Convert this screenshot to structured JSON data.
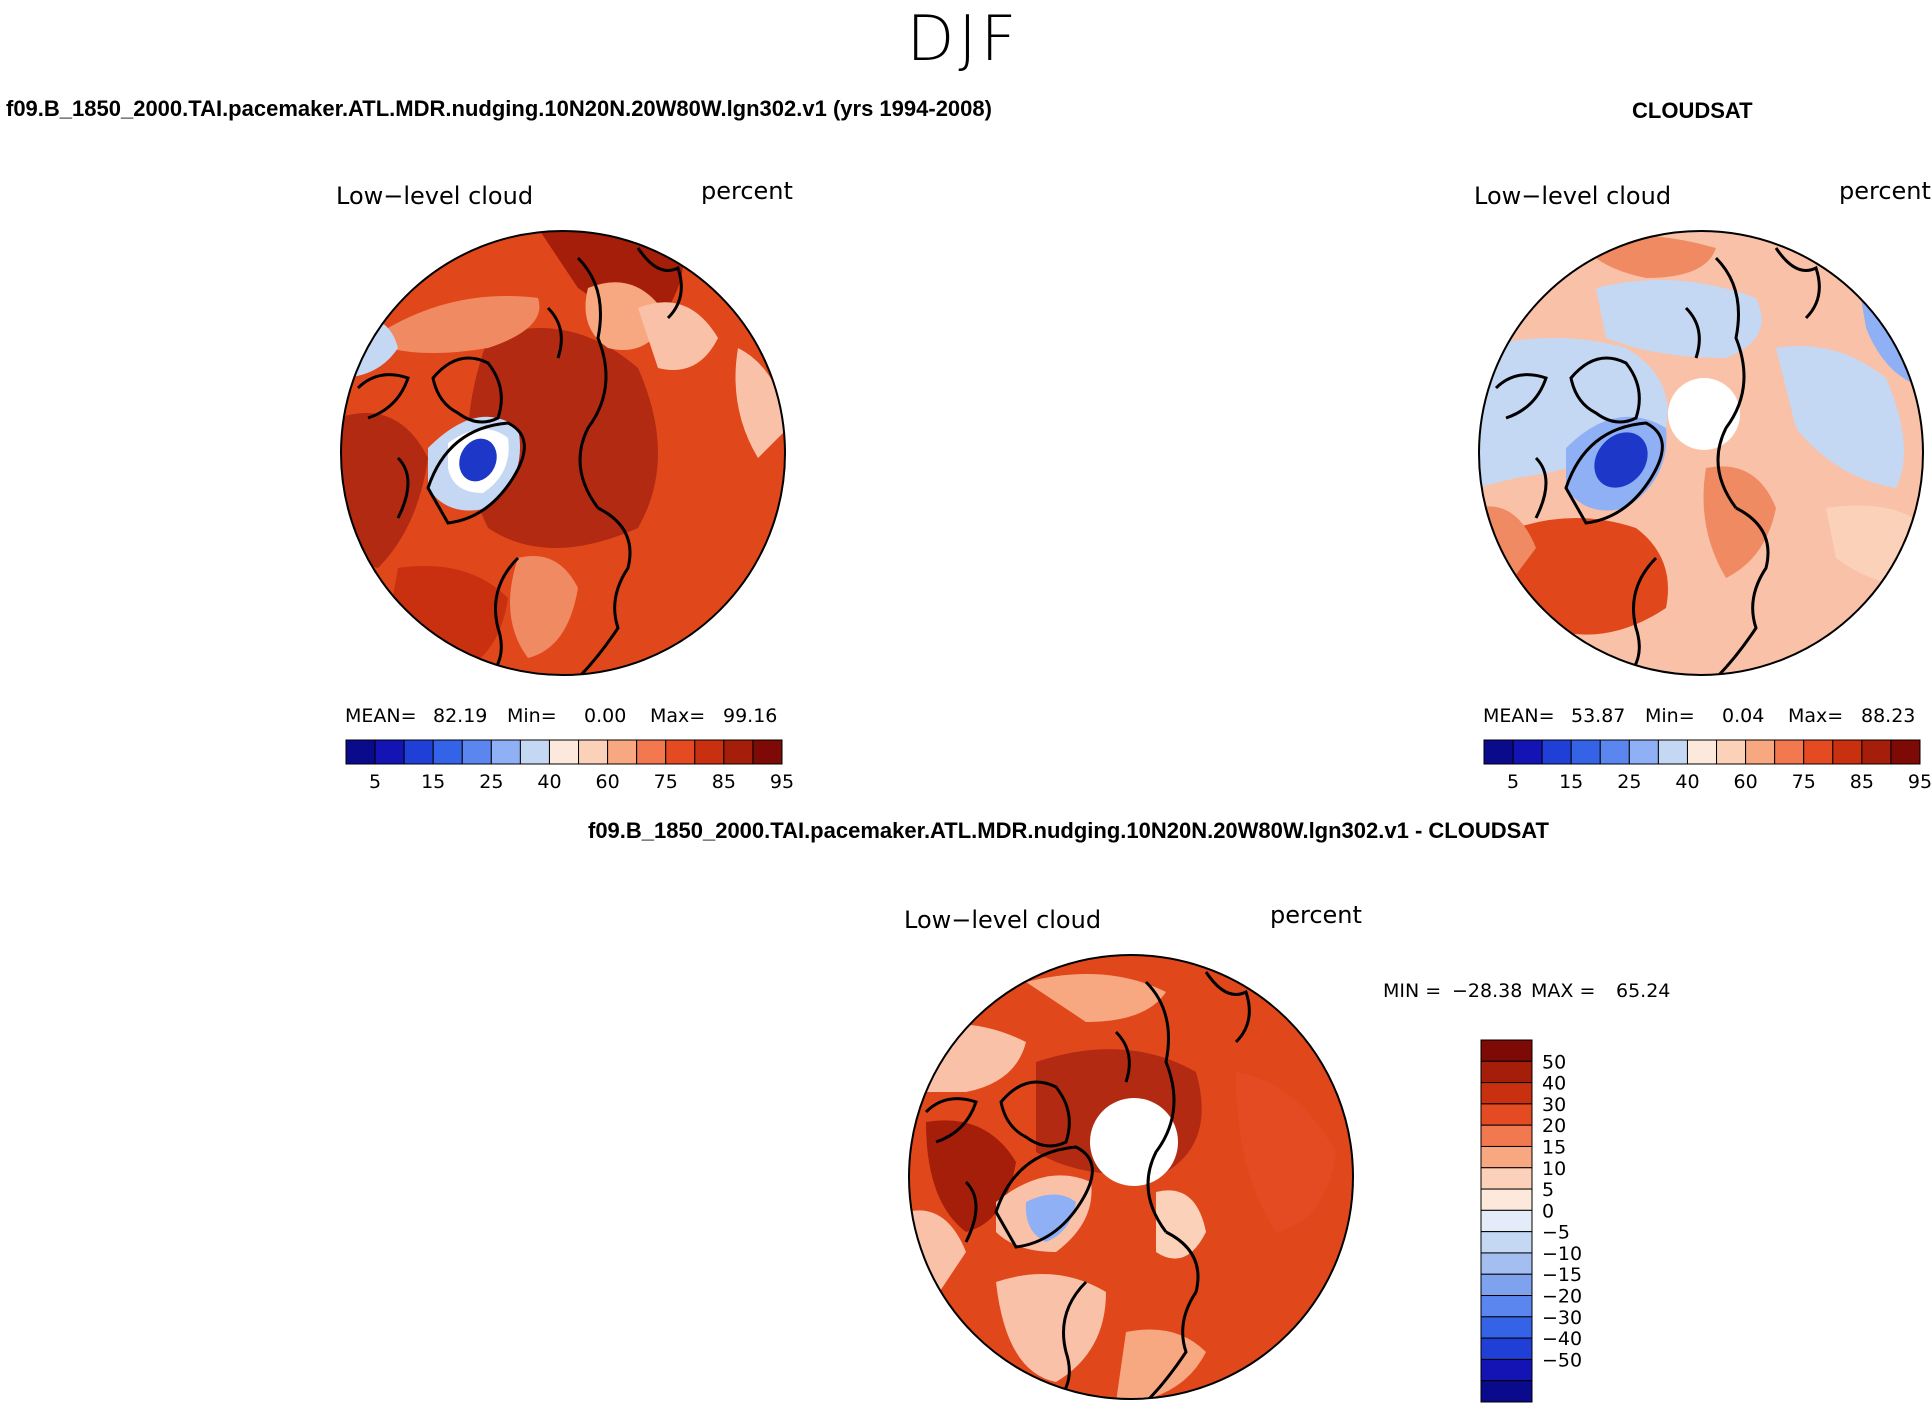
{
  "figure": {
    "season": "DJF",
    "palette": {
      "land_line": "#000000",
      "ocean_dark_red": "#b22a12",
      "red": "#e0481c",
      "light_red": "#f08a62",
      "pink": "#f9c2a8",
      "white": "#ffffff",
      "light_blue": "#c4d7f3",
      "blue": "#1d38c8"
    }
  },
  "panels": {
    "model": {
      "case_title": "f09.B_1850_2000.TAI.pacemaker.ATL.MDR.nudging.10N20N.20W80W.lgn302.v1 (yrs 1994-2008)",
      "variable": "Low−level cloud",
      "units": "percent",
      "stats": {
        "mean_label": "MEAN=",
        "mean": "82.19",
        "min_label": "Min=",
        "min": "0.00",
        "max_label": "Max=",
        "max": "99.16"
      },
      "colorbar": {
        "colors": [
          "#0a0a8c",
          "#1414b4",
          "#1f3fd6",
          "#3463e8",
          "#5b86ef",
          "#8fb0f4",
          "#c4d7f3",
          "#fde8dc",
          "#fbd1ba",
          "#f7a880",
          "#f2794f",
          "#e54b22",
          "#c8300f",
          "#a51e0a",
          "#7d0a05"
        ],
        "tick_labels": [
          "5",
          "15",
          "25",
          "40",
          "60",
          "75",
          "85",
          "95"
        ]
      }
    },
    "obs": {
      "case_title": "CLOUDSAT",
      "variable": "Low−level cloud",
      "units": "percent",
      "stats": {
        "mean_label": "MEAN=",
        "mean": "53.87",
        "min_label": "Min=",
        "min": "0.04",
        "max_label": "Max=",
        "max": "88.23"
      },
      "colorbar": {
        "colors": [
          "#0a0a8c",
          "#1414b4",
          "#1f3fd6",
          "#3463e8",
          "#5b86ef",
          "#8fb0f4",
          "#c4d7f3",
          "#fde8dc",
          "#fbd1ba",
          "#f7a880",
          "#f2794f",
          "#e54b22",
          "#c8300f",
          "#a51e0a",
          "#7d0a05"
        ],
        "tick_labels": [
          "5",
          "15",
          "25",
          "40",
          "60",
          "75",
          "85",
          "95"
        ]
      }
    },
    "diff": {
      "case_title": "f09.B_1850_2000.TAI.pacemaker.ATL.MDR.nudging.10N20N.20W80W.lgn302.v1 - CLOUDSAT",
      "variable": "Low−level cloud",
      "units": "percent",
      "stats": {
        "min_label": "MIN =",
        "min": "−28.38",
        "max_label": "MAX =",
        "max": "65.24"
      },
      "colorbar": {
        "colors": [
          "#7d0a05",
          "#a51e0a",
          "#c8300f",
          "#e54b22",
          "#f2794f",
          "#f7a880",
          "#fbd1ba",
          "#fde8dc",
          "#e4ecf9",
          "#c4d7f3",
          "#a3bff2",
          "#7fa2ef",
          "#5b86ef",
          "#3463e8",
          "#1f3fd6",
          "#1414b4",
          "#0a0a8c"
        ],
        "tick_labels": [
          "50",
          "40",
          "30",
          "20",
          "15",
          "10",
          "5",
          "0",
          "−5",
          "−10",
          "−15",
          "−20",
          "−30",
          "−40",
          "−50"
        ]
      }
    }
  }
}
